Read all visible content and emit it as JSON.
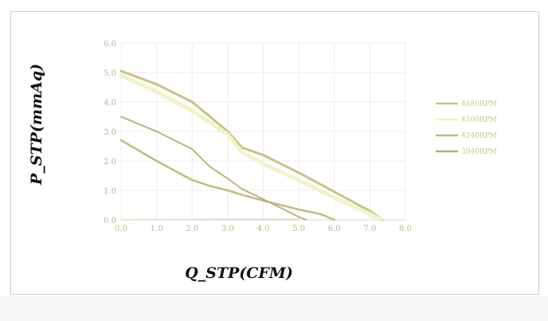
{
  "chart_data": {
    "type": "line",
    "title": "",
    "xlabel": "Q_STP(CFM)",
    "ylabel": "P_STP(mmAq)",
    "xlim": [
      0,
      8
    ],
    "ylim": [
      0,
      6
    ],
    "x_ticks": [
      "0.0",
      "1.0",
      "2.0",
      "3.0",
      "4.0",
      "5.0",
      "6.0",
      "7.0",
      "8.0"
    ],
    "y_ticks": [
      "0.0",
      "1.0",
      "2.0",
      "3.0",
      "4.0",
      "5.0",
      "6.0"
    ],
    "grid": true,
    "legend_position": "right",
    "series": [
      {
        "name": "4680RPM",
        "color": "#c8c28a",
        "points": [
          [
            0,
            5.05
          ],
          [
            1,
            4.6
          ],
          [
            2,
            4.0
          ],
          [
            3,
            3.0
          ],
          [
            3.4,
            2.45
          ],
          [
            4,
            2.2
          ],
          [
            5,
            1.6
          ],
          [
            6,
            0.95
          ],
          [
            7,
            0.3
          ],
          [
            7.35,
            0.0
          ]
        ]
      },
      {
        "name": "4500RPM",
        "color": "#f1f3c9",
        "points": [
          [
            0,
            4.9
          ],
          [
            1,
            4.35
          ],
          [
            2,
            3.7
          ],
          [
            3,
            2.9
          ],
          [
            3.4,
            2.3
          ],
          [
            4,
            1.9
          ],
          [
            5,
            1.35
          ],
          [
            6,
            0.75
          ],
          [
            7,
            0.2
          ],
          [
            7.3,
            0.0
          ]
        ]
      },
      {
        "name": "4240RPM",
        "color": "#c2bb80",
        "points": [
          [
            0,
            2.7
          ],
          [
            1,
            2.0
          ],
          [
            2,
            1.35
          ],
          [
            2.5,
            1.15
          ],
          [
            3,
            1.0
          ],
          [
            3.4,
            0.85
          ],
          [
            4,
            0.65
          ],
          [
            5,
            0.35
          ],
          [
            5.6,
            0.2
          ],
          [
            6.0,
            0.0
          ]
        ]
      },
      {
        "name": "3940RPM",
        "color": "#b5ae78",
        "points": [
          [
            0,
            3.5
          ],
          [
            1,
            3.0
          ],
          [
            2,
            2.4
          ],
          [
            2.5,
            1.8
          ],
          [
            3,
            1.4
          ],
          [
            3.4,
            1.05
          ],
          [
            4,
            0.7
          ],
          [
            5,
            0.1
          ],
          [
            5.2,
            0.0
          ]
        ]
      },
      {
        "name": "",
        "color": "#d6d1a6",
        "points": [
          [
            0,
            0.0
          ],
          [
            3.4,
            0.02
          ],
          [
            5.0,
            0.02
          ]
        ]
      }
    ]
  }
}
